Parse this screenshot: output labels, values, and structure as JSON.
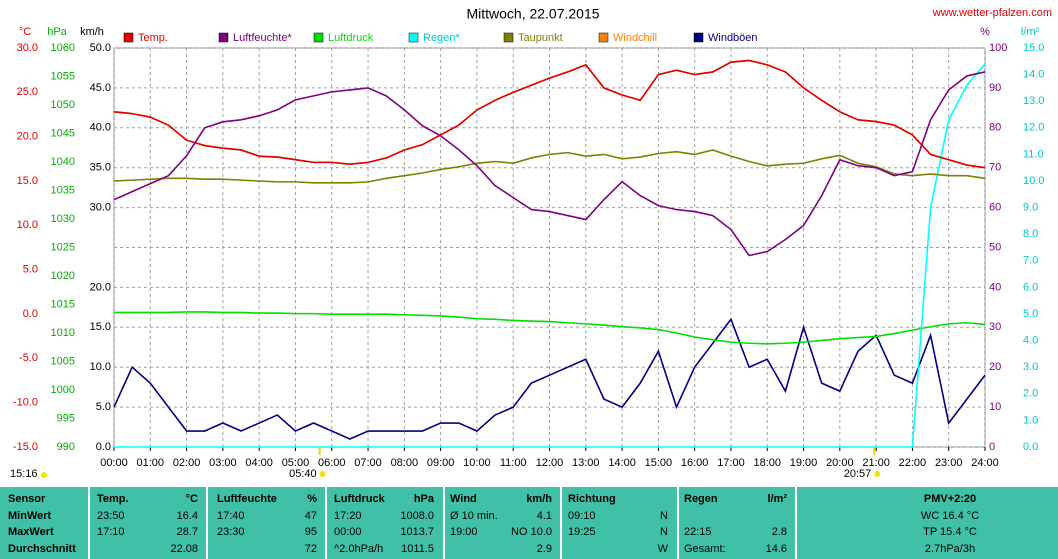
{
  "chart_data": {
    "type": "line",
    "title": "Mittwoch, 22.07.2015",
    "source": "www.wetter-pfalzen.com",
    "grid": true,
    "x": [
      0,
      0.5,
      1,
      1.5,
      2,
      2.5,
      3,
      3.5,
      4,
      4.5,
      5,
      5.5,
      6,
      6.5,
      7,
      7.5,
      8,
      8.5,
      9,
      9.5,
      10,
      10.5,
      11,
      11.5,
      12,
      12.5,
      13,
      13.5,
      14,
      14.5,
      15,
      15.5,
      16,
      16.5,
      17,
      17.5,
      18,
      18.5,
      19,
      19.5,
      20,
      20.5,
      21,
      21.5,
      22,
      22.5,
      23,
      23.5,
      24
    ],
    "xlim": [
      0,
      24
    ],
    "xticks": [
      {
        "value": 0,
        "label": "00:00"
      },
      {
        "value": 1,
        "label": "01:00"
      },
      {
        "value": 2,
        "label": "02:00"
      },
      {
        "value": 3,
        "label": "03:00"
      },
      {
        "value": 4,
        "label": "04:00"
      },
      {
        "value": 5,
        "label": "05:00"
      },
      {
        "value": 6,
        "label": "06:00"
      },
      {
        "value": 7,
        "label": "07:00"
      },
      {
        "value": 8,
        "label": "08:00"
      },
      {
        "value": 9,
        "label": "09:00"
      },
      {
        "value": 10,
        "label": "10:00"
      },
      {
        "value": 11,
        "label": "11:00"
      },
      {
        "value": 12,
        "label": "12:00"
      },
      {
        "value": 13,
        "label": "13:00"
      },
      {
        "value": 14,
        "label": "14:00"
      },
      {
        "value": 15,
        "label": "15:00"
      },
      {
        "value": 16,
        "label": "16:00"
      },
      {
        "value": 17,
        "label": "17:00"
      },
      {
        "value": 18,
        "label": "18:00"
      },
      {
        "value": 19,
        "label": "19:00"
      },
      {
        "value": 20,
        "label": "20:00"
      },
      {
        "value": 21,
        "label": "21:00"
      },
      {
        "value": 22,
        "label": "22:00"
      },
      {
        "value": 23,
        "label": "23:00"
      },
      {
        "value": 24,
        "label": "24:00"
      }
    ],
    "axes": [
      {
        "unit": "°C",
        "color": "#e00000",
        "lim": [
          -15,
          30
        ],
        "ticks": [
          {
            "value": -15,
            "label": "-15.0"
          },
          {
            "value": -10,
            "label": "-10.0"
          },
          {
            "value": -5,
            "label": "-5.0"
          },
          {
            "value": 0,
            "label": "0.0"
          },
          {
            "value": 5,
            "label": "5.0"
          },
          {
            "value": 10,
            "label": "10.0"
          },
          {
            "value": 15,
            "label": "15.0"
          },
          {
            "value": 20,
            "label": "20.0"
          },
          {
            "value": 25,
            "label": "25.0"
          },
          {
            "value": 30,
            "label": "30.0"
          }
        ]
      },
      {
        "unit": "hPa",
        "color": "#00b000",
        "lim": [
          990,
          1060
        ],
        "ticks": [
          990,
          995,
          1000,
          1005,
          1010,
          1015,
          1020,
          1025,
          1030,
          1035,
          1040,
          1045,
          1050,
          1055,
          1060
        ]
      },
      {
        "unit": "km/h",
        "color": "#000000",
        "lim": [
          0,
          50
        ],
        "ticks": [
          {
            "value": 0,
            "label": "0.0"
          },
          {
            "value": 5,
            "label": "5.0"
          },
          {
            "value": 10,
            "label": "10.0"
          },
          {
            "value": 15,
            "label": "15.0"
          },
          {
            "value": 20,
            "label": "20.0"
          },
          {
            "value": 30,
            "label": "30.0"
          },
          {
            "value": 35,
            "label": "35.0"
          },
          {
            "value": 40,
            "label": "40.0"
          },
          {
            "value": 45,
            "label": "45.0"
          },
          {
            "value": 50,
            "label": "50.0"
          }
        ]
      },
      {
        "unit": "%",
        "color": "#800080",
        "lim": [
          0,
          100
        ],
        "ticks": [
          0,
          10,
          20,
          30,
          40,
          50,
          60,
          70,
          80,
          90,
          100
        ]
      },
      {
        "unit": "l/m²",
        "color": "#00c8c8",
        "lim": [
          0,
          15
        ],
        "ticks": [
          {
            "value": 0,
            "label": "0.0"
          },
          {
            "value": 1,
            "label": "1.0"
          },
          {
            "value": 2,
            "label": "2.0"
          },
          {
            "value": 3,
            "label": "3.0"
          },
          {
            "value": 4,
            "label": "4.0"
          },
          {
            "value": 5,
            "label": "5.0"
          },
          {
            "value": 6,
            "label": "6.0"
          },
          {
            "value": 7,
            "label": "7.0"
          },
          {
            "value": 8,
            "label": "8.0"
          },
          {
            "value": 9,
            "label": "9.0"
          },
          {
            "value": 10,
            "label": "10.0"
          },
          {
            "value": 11,
            "label": "11.0"
          },
          {
            "value": 12,
            "label": "12.0"
          },
          {
            "value": 13,
            "label": "13.0"
          },
          {
            "value": 14,
            "label": "14.0"
          },
          {
            "value": 15,
            "label": "15.0"
          }
        ]
      }
    ],
    "series": [
      {
        "name": "Temp.",
        "color": "#e00000",
        "axis": 0,
        "values": [
          22.8,
          22.6,
          22.2,
          21.3,
          19.6,
          19.0,
          18.7,
          18.5,
          17.8,
          17.7,
          17.4,
          17.1,
          17.1,
          16.9,
          17.1,
          17.6,
          18.5,
          19.1,
          20.2,
          21.3,
          23.0,
          24.1,
          25.0,
          25.8,
          26.6,
          27.3,
          28.1,
          25.5,
          24.7,
          24.1,
          27.0,
          27.5,
          27.0,
          27.3,
          28.4,
          28.6,
          28.1,
          27.3,
          25.5,
          24.1,
          22.8,
          21.9,
          21.7,
          21.3,
          20.2,
          18.0,
          17.4,
          16.8,
          16.5
        ]
      },
      {
        "name": "Luftfeuchte*",
        "color": "#800080",
        "axis": 3,
        "values": [
          62,
          64,
          66,
          68,
          73,
          80,
          81.5,
          82,
          83,
          84.5,
          87,
          88,
          89,
          89.5,
          90,
          88,
          84.5,
          80.5,
          78,
          74.5,
          70.5,
          65.5,
          62.5,
          59.5,
          59,
          58,
          57,
          62,
          66.5,
          63,
          60.5,
          59.5,
          59,
          58,
          54.5,
          48,
          49,
          52,
          55.5,
          63,
          72,
          70.5,
          70,
          68,
          69,
          82,
          89.5,
          93,
          94
        ]
      },
      {
        "name": "Luftdruck",
        "color": "#00e000",
        "axis": 1,
        "values": [
          1013.6,
          1013.6,
          1013.6,
          1013.6,
          1013.7,
          1013.7,
          1013.6,
          1013.6,
          1013.5,
          1013.5,
          1013.4,
          1013.4,
          1013.3,
          1013.3,
          1013.3,
          1013.3,
          1013.2,
          1013.1,
          1013.0,
          1012.8,
          1012.5,
          1012.4,
          1012.2,
          1012.1,
          1012.0,
          1011.8,
          1011.6,
          1011.4,
          1011.1,
          1010.9,
          1010.6,
          1010.0,
          1009.3,
          1008.8,
          1008.4,
          1008.2,
          1008.1,
          1008.2,
          1008.4,
          1008.7,
          1009.0,
          1009.2,
          1009.4,
          1009.9,
          1010.5,
          1011.1,
          1011.6,
          1011.8,
          1011.5
        ]
      },
      {
        "name": "Regen*",
        "color": "#00ffff",
        "axis": 4,
        "values": [
          0,
          0,
          0,
          0,
          0,
          0,
          0,
          0,
          0,
          0,
          0,
          0,
          0,
          0,
          0,
          0,
          0,
          0,
          0,
          0,
          0,
          0,
          0,
          0,
          0,
          0,
          0,
          0,
          0,
          0,
          0,
          0,
          0,
          0,
          0,
          0,
          0,
          0,
          0,
          0,
          0,
          0,
          0,
          0,
          0,
          9.0,
          12.3,
          13.6,
          14.4
        ]
      },
      {
        "name": "Taupunkt",
        "color": "#808000",
        "axis": 0,
        "values": [
          15.0,
          15.1,
          15.2,
          15.3,
          15.3,
          15.2,
          15.2,
          15.1,
          15.0,
          14.9,
          14.9,
          14.8,
          14.8,
          14.8,
          14.9,
          15.3,
          15.6,
          15.9,
          16.3,
          16.6,
          17.0,
          17.2,
          17.0,
          17.6,
          18.0,
          18.2,
          17.8,
          18.0,
          17.5,
          17.7,
          18.1,
          18.3,
          18.0,
          18.5,
          17.8,
          17.2,
          16.7,
          16.9,
          17.0,
          17.5,
          17.9,
          17.0,
          16.6,
          15.8,
          15.6,
          15.8,
          15.6,
          15.6,
          15.3
        ]
      },
      {
        "name": "Windchill",
        "color": "#ff8000",
        "axis": 0,
        "values": [
          22.8,
          22.6,
          22.2,
          21.3,
          19.6,
          19.0,
          18.7,
          18.5,
          17.8,
          17.7,
          17.4,
          17.1,
          17.1,
          16.9,
          17.1,
          17.6,
          18.5,
          19.1,
          20.2,
          21.3,
          23.0,
          24.1,
          25.0,
          25.8,
          26.6,
          27.3,
          28.1,
          25.5,
          24.7,
          24.1,
          27.0,
          27.5,
          27.0,
          27.3,
          28.4,
          28.6,
          28.1,
          27.3,
          25.5,
          24.1,
          22.8,
          21.9,
          21.7,
          21.3,
          20.2,
          18.0,
          17.4,
          16.8,
          16.5
        ]
      },
      {
        "name": "Windböen",
        "color": "#000080",
        "axis": 2,
        "values": [
          5,
          10,
          8,
          5,
          2,
          2,
          3,
          2,
          3,
          4,
          2,
          3,
          2,
          1,
          2,
          2,
          2,
          2,
          3,
          3,
          2,
          4,
          5,
          8,
          9,
          10,
          11,
          6,
          5,
          8,
          12,
          5,
          10,
          13,
          16,
          10,
          11,
          7,
          15,
          8,
          7,
          12,
          14,
          9,
          8,
          14,
          3,
          6,
          9
        ]
      }
    ]
  },
  "sun": {
    "day_length": "15:16",
    "sunrise": "05:40",
    "sunset": "20:57"
  },
  "stats_table": {
    "header": [
      [
        "Sensor"
      ],
      [
        "Temp.",
        "°C"
      ],
      [
        "Luftfeuchte",
        "%"
      ],
      [
        "Luftdruck",
        "hPa"
      ],
      [
        "Wind",
        "km/h"
      ],
      [
        "Richtung"
      ],
      [
        "Regen",
        "l/m²"
      ],
      [
        "PMV+2:20"
      ]
    ],
    "rows": [
      [
        [
          "MinWert"
        ],
        [
          "23:50",
          "16.4"
        ],
        [
          "17:40",
          "47"
        ],
        [
          "17:20",
          "1008.0"
        ],
        [
          "Ø 10 min.",
          "4.1"
        ],
        [
          "09:10",
          "N"
        ],
        [],
        [
          "WC 16.4 °C"
        ]
      ],
      [
        [
          "MaxWert"
        ],
        [
          "17:10",
          "28.7"
        ],
        [
          "23:30",
          "95"
        ],
        [
          "00:00",
          "1013.7"
        ],
        [
          "19:00",
          "NO 10.0"
        ],
        [
          "19:25",
          "N"
        ],
        [
          "22:15",
          "2.8"
        ],
        [
          "TP 15.4 °C"
        ]
      ],
      [
        [
          "Durchschnitt"
        ],
        [
          "22.08"
        ],
        [
          "72"
        ],
        [
          "^2.0hPa/h",
          "1011.5"
        ],
        [
          "2.9"
        ],
        [
          "W"
        ],
        [
          "Gesamt:",
          "14.6"
        ],
        [
          "2.7hPa/3h"
        ]
      ]
    ]
  }
}
